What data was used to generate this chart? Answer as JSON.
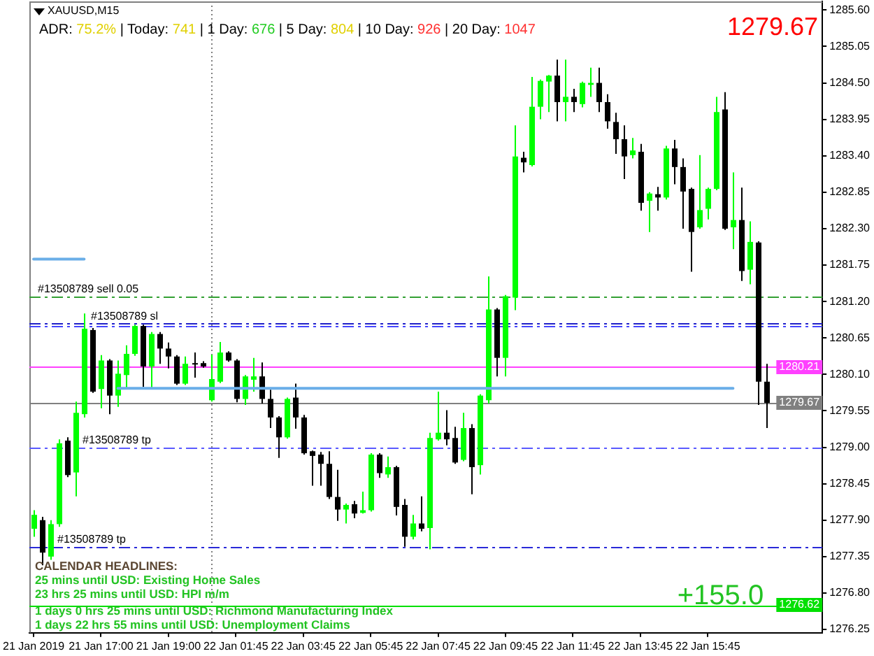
{
  "chart_data": {
    "type": "candlestick",
    "title": "XAUUSD,M15",
    "subtitle": "ADR: 75.2% | Today: 741 | 1 Day: 676 | 5 Day: 804 | 10 Day: 926 | 20 Day: 1047",
    "annotations": [
      "1279.67",
      "CALENDAR HEADLINES:",
      "25 mins until USD: Existing Home Sales",
      "23 hrs 25 mins until USD: HPI m/m",
      "1 days 0 hrs 25 mins until USD: Richmond Manufacturing Index",
      "1 days 22 hrs 55 mins until USD: Unemployment Claims",
      "+155.0"
    ],
    "categories": [
      "21 Jan 2019",
      null,
      null,
      null,
      null,
      null,
      null,
      null,
      "21 Jan 17:00",
      null,
      null,
      null,
      null,
      null,
      null,
      null,
      "21 Jan 19:00",
      null,
      null,
      null,
      null,
      null,
      null,
      null,
      "22 Jan 01:45",
      null,
      null,
      null,
      null,
      null,
      null,
      null,
      "22 Jan 03:45",
      null,
      null,
      null,
      null,
      null,
      null,
      null,
      "22 Jan 05:45",
      null,
      null,
      null,
      null,
      null,
      null,
      null,
      "22 Jan 07:45",
      null,
      null,
      null,
      null,
      null,
      null,
      null,
      "22 Jan 09:45",
      null,
      null,
      null,
      null,
      null,
      null,
      null,
      "22 Jan 11:45",
      null,
      null,
      null,
      null,
      null,
      null,
      null,
      "22 Jan 13:45",
      null,
      null,
      null,
      null,
      null,
      null,
      null,
      "22 Jan 15:45",
      null,
      null,
      null,
      null,
      null,
      null,
      null
    ],
    "ylim": [
      1276.2,
      1285.73
    ],
    "yticks": [
      {
        "value": 1285.6,
        "label": "1285.60"
      },
      1285.05,
      {
        "value": 1284.5,
        "label": "1284.50"
      },
      1283.95,
      {
        "value": 1283.4,
        "label": "1283.40"
      },
      1282.85,
      {
        "value": 1282.3,
        "label": "1282.30"
      },
      1281.75,
      {
        "value": 1281.2,
        "label": "1281.20"
      },
      1280.65,
      {
        "value": 1280.1,
        "label": "1280.10"
      },
      1279.55,
      {
        "value": 1279,
        "label": "1279.00"
      },
      1278.45,
      {
        "value": 1277.9,
        "label": "1277.90"
      },
      1277.35,
      {
        "value": 1276.8,
        "label": "1276.80"
      },
      1276.25
    ],
    "series": [
      {
        "ohlc": [
          [
            1277.77,
            1278.05,
            1277.65,
            1277.98
          ],
          [
            1277.9,
            1277.95,
            1277.22,
            1277.41
          ],
          [
            1277.35,
            1277.9,
            1277.3,
            1277.84
          ],
          [
            1277.84,
            1279.12,
            1277.8,
            1279.06
          ],
          [
            1279.1,
            1279.15,
            1278.55,
            1278.58
          ],
          [
            1278.62,
            1279.69,
            1278.26,
            1279.52
          ],
          [
            1279.5,
            1281.02,
            1279.45,
            1280.79
          ],
          [
            1280.77,
            1280.8,
            1279.82,
            1279.84
          ],
          [
            1279.88,
            1280.39,
            1279.59,
            1280.31
          ],
          [
            1280.31,
            1280.33,
            1279.5,
            1279.78
          ],
          [
            1279.78,
            1280.31,
            1279.61,
            1280.11
          ],
          [
            1280.09,
            1280.54,
            1279.88,
            1280.41
          ],
          [
            1280.41,
            1280.85,
            1280.38,
            1280.83
          ],
          [
            1280.83,
            1280.85,
            1279.91,
            1280.22
          ],
          [
            1280.22,
            1280.74,
            1279.89,
            1280.71
          ],
          [
            1280.71,
            1280.74,
            1280.26,
            1280.49
          ],
          [
            1280.49,
            1280.58,
            1280.19,
            1280.37
          ],
          [
            1280.37,
            1280.39,
            1279.94,
            1279.96
          ],
          [
            1279.96,
            1280.37,
            1279.94,
            1280.26
          ],
          [
            1280.27,
            1280.43,
            1280.05,
            1280.25
          ],
          [
            1280.27,
            1280.3,
            1280.2,
            1280.22
          ],
          [
            1279.71,
            1280.4,
            1279.69,
            1280.03
          ],
          [
            1279.99,
            1280.59,
            1279.97,
            1280.43
          ],
          [
            1280.43,
            1280.45,
            1280.29,
            1280.31
          ],
          [
            1280.31,
            1280.33,
            1279.68,
            1279.73
          ],
          [
            1279.73,
            1280.09,
            1279.64,
            1280.07
          ],
          [
            1280.02,
            1280.35,
            1279.84,
            1280.07
          ],
          [
            1280.07,
            1280.28,
            1279.66,
            1279.73
          ],
          [
            1279.73,
            1279.87,
            1279.29,
            1279.45
          ],
          [
            1279.45,
            1279.47,
            1278.84,
            1279.15
          ],
          [
            1279.15,
            1279.75,
            1279.13,
            1279.73
          ],
          [
            1279.75,
            1279.96,
            1279.28,
            1279.45
          ],
          [
            1279.45,
            1279.49,
            1278.89,
            1278.91
          ],
          [
            1278.94,
            1278.95,
            1278.42,
            1278.87
          ],
          [
            1278.89,
            1278.93,
            1278.42,
            1278.75
          ],
          [
            1278.75,
            1278.94,
            1278.22,
            1278.25
          ],
          [
            1278.25,
            1278.66,
            1277.89,
            1278.06
          ],
          [
            1278.06,
            1278.15,
            1277.85,
            1278.13
          ],
          [
            1278.14,
            1278.19,
            1277.93,
            1278.0
          ],
          [
            1278.01,
            1278.33,
            1278.0,
            1278.05
          ],
          [
            1278.05,
            1278.91,
            1278.03,
            1278.89
          ],
          [
            1278.89,
            1278.91,
            1278.54,
            1278.61
          ],
          [
            1278.59,
            1278.86,
            1278.54,
            1278.7
          ],
          [
            1278.7,
            1278.72,
            1277.97,
            1278.1
          ],
          [
            1278.13,
            1278.22,
            1277.5,
            1277.65
          ],
          [
            1277.65,
            1277.98,
            1277.61,
            1277.85
          ],
          [
            1277.85,
            1278.26,
            1277.73,
            1277.77
          ],
          [
            1277.78,
            1279.22,
            1277.46,
            1279.14
          ],
          [
            1279.12,
            1279.84,
            1279.1,
            1279.22
          ],
          [
            1279.22,
            1279.56,
            1279.03,
            1279.12
          ],
          [
            1279.14,
            1279.31,
            1278.75,
            1278.77
          ],
          [
            1278.81,
            1279.52,
            1278.79,
            1279.29
          ],
          [
            1279.29,
            1279.35,
            1278.29,
            1278.7
          ],
          [
            1278.73,
            1279.8,
            1278.59,
            1279.78
          ],
          [
            1279.71,
            1281.58,
            1279.66,
            1281.08
          ],
          [
            1281.08,
            1281.1,
            1280.07,
            1280.35
          ],
          [
            1280.35,
            1281.3,
            1280.07,
            1281.28
          ],
          [
            1281.26,
            1283.86,
            1281.07,
            1283.39
          ],
          [
            1283.37,
            1283.46,
            1283.15,
            1283.3
          ],
          [
            1283.26,
            1284.59,
            1283.24,
            1284.14
          ],
          [
            1284.14,
            1284.55,
            1283.95,
            1284.53
          ],
          [
            1284.52,
            1284.62,
            1284.06,
            1284.61
          ],
          [
            1284.61,
            1284.85,
            1283.92,
            1284.21
          ],
          [
            1284.21,
            1284.85,
            1283.92,
            1284.29
          ],
          [
            1284.29,
            1284.41,
            1284.06,
            1284.21
          ],
          [
            1284.18,
            1284.52,
            1284.13,
            1284.5
          ],
          [
            1284.47,
            1284.73,
            1284.29,
            1284.5
          ],
          [
            1284.5,
            1284.73,
            1284.06,
            1284.21
          ],
          [
            1284.21,
            1284.33,
            1283.81,
            1283.92
          ],
          [
            1283.91,
            1284.05,
            1283.43,
            1283.65
          ],
          [
            1283.65,
            1283.86,
            1283.05,
            1283.39
          ],
          [
            1283.41,
            1283.67,
            1283.36,
            1283.48
          ],
          [
            1283.46,
            1283.58,
            1282.57,
            1282.69
          ],
          [
            1282.72,
            1282.85,
            1282.25,
            1282.83
          ],
          [
            1282.82,
            1282.93,
            1282.57,
            1282.77
          ],
          [
            1282.77,
            1283.55,
            1282.74,
            1283.51
          ],
          [
            1283.51,
            1283.64,
            1282.97,
            1283.23
          ],
          [
            1283.23,
            1283.36,
            1282.3,
            1282.86
          ],
          [
            1282.9,
            1282.92,
            1281.65,
            1282.25
          ],
          [
            1282.32,
            1283.41,
            1282.3,
            1282.58
          ],
          [
            1282.6,
            1282.92,
            1282.44,
            1282.9
          ],
          [
            1282.9,
            1284.29,
            1282.88,
            1284.06
          ],
          [
            1284.1,
            1284.36,
            1282.28,
            1282.3
          ],
          [
            1282.32,
            1283.15,
            1281.99,
            1282.43
          ],
          [
            1282.43,
            1282.92,
            1281.51,
            1281.66
          ],
          [
            1281.68,
            1282.41,
            1281.46,
            1282.1
          ],
          [
            1282.09,
            1282.11,
            1279.64,
            1279.99
          ],
          [
            1279.99,
            1280.26,
            1279.29,
            1279.67
          ]
        ],
        "colors": [
          "#00ff00",
          "#000000",
          "#00ff00",
          "#00ff00",
          "#000000",
          "#00ff00",
          "#00ff00",
          "#000000",
          "#00ff00",
          "#000000",
          "#00ff00",
          "#00ff00",
          "#00ff00",
          "#000000",
          "#00ff00",
          "#000000",
          "#000000",
          "#000000",
          "#00ff00",
          "#000000",
          "#000000",
          "#00ff00",
          "#00ff00",
          "#000000",
          "#000000",
          "#00ff00",
          "#00ff00",
          "#000000",
          "#000000",
          "#000000",
          "#00ff00",
          "#000000",
          "#000000",
          "#000000",
          "#000000",
          "#000000",
          "#000000",
          "#00ff00",
          "#000000",
          "#00ff00",
          "#00ff00",
          "#000000",
          "#00ff00",
          "#000000",
          "#000000",
          "#00ff00",
          "#000000",
          "#00ff00",
          "#00ff00",
          "#000000",
          "#000000",
          "#00ff00",
          "#000000",
          "#00ff00",
          "#00ff00",
          "#000000",
          "#00ff00",
          "#00ff00",
          "#000000",
          "#00ff00",
          "#00ff00",
          "#00ff00",
          "#000000",
          "#00ff00",
          "#000000",
          "#00ff00",
          "#00ff00",
          "#000000",
          "#000000",
          "#000000",
          "#000000",
          "#00ff00",
          "#000000",
          "#00ff00",
          "#000000",
          "#00ff00",
          "#000000",
          "#000000",
          "#000000",
          "#00ff00",
          "#00ff00",
          "#00ff00",
          "#000000",
          "#00ff00",
          "#000000",
          "#00ff00",
          "#000000",
          "#000000"
        ]
      },
      {
        "type": "line",
        "color": "#6aaee8",
        "values": [
          1281.84,
          1281.84,
          1281.84,
          1281.84,
          1281.84,
          1281.84,
          1281.84,
          null,
          null,
          null,
          1279.89,
          1279.89,
          1279.89,
          1279.89,
          1279.89,
          1279.89,
          1279.89,
          1279.89,
          1279.89,
          1279.89,
          1279.89,
          1279.89,
          1279.89,
          1279.89,
          1279.89,
          1279.89,
          1279.89,
          1279.89,
          1279.89,
          1279.89,
          1279.89,
          1279.89,
          1279.89,
          1279.89,
          1279.89,
          1279.89,
          1279.89,
          1279.89,
          1279.89,
          1279.89,
          1279.89,
          1279.89,
          1279.89,
          1279.89,
          1279.89,
          1279.89,
          1279.89,
          1279.89,
          1279.89,
          1279.89,
          1279.89,
          1279.89,
          1279.89,
          1279.89,
          1279.89,
          1279.89,
          1279.89,
          1279.89,
          1279.89,
          1279.89,
          1279.89,
          1279.89,
          1279.89,
          1279.89,
          1279.89,
          1279.89,
          1279.89,
          1279.89,
          1279.89,
          1279.89,
          1279.89,
          1279.89,
          1279.89,
          1279.89,
          1279.89,
          1279.89,
          1279.89,
          1279.89,
          1279.89,
          1279.89,
          1279.89,
          1279.89,
          1279.89,
          1279.89,
          null,
          null,
          null,
          null
        ]
      }
    ],
    "ref_lines": [
      {
        "axis": "y",
        "value": 1281.28,
        "label": "#13508789 sell 0.05",
        "color": "#33a033",
        "line_style": "dashed"
      },
      {
        "axis": "y",
        "value": 1280.87,
        "label": "#13508789 sl",
        "color": "#2020c8",
        "line_style": "dashed"
      },
      {
        "axis": "y",
        "value": 1280.83,
        "color": "#4646ff",
        "line_style": "dashed"
      },
      {
        "axis": "y",
        "value": 1280.21,
        "label": "1280.21",
        "color": "#ff40ff",
        "line_style": "solid"
      },
      {
        "axis": "y",
        "value": 1279.67,
        "label": "1279.67",
        "color": "#808080",
        "line_style": "solid"
      },
      {
        "axis": "y",
        "value": 1279,
        "label": "#13508789 tp",
        "color": "#5a5aff",
        "line_style": "dashed"
      },
      {
        "axis": "y",
        "value": 1277.5,
        "label": "#13508789 tp",
        "color": "#2a2ad8",
        "line_style": "dashed"
      },
      {
        "axis": "y",
        "value": 1276.62,
        "label": "1276.62",
        "color": "#00e000",
        "line_style": "solid"
      }
    ]
  }
}
